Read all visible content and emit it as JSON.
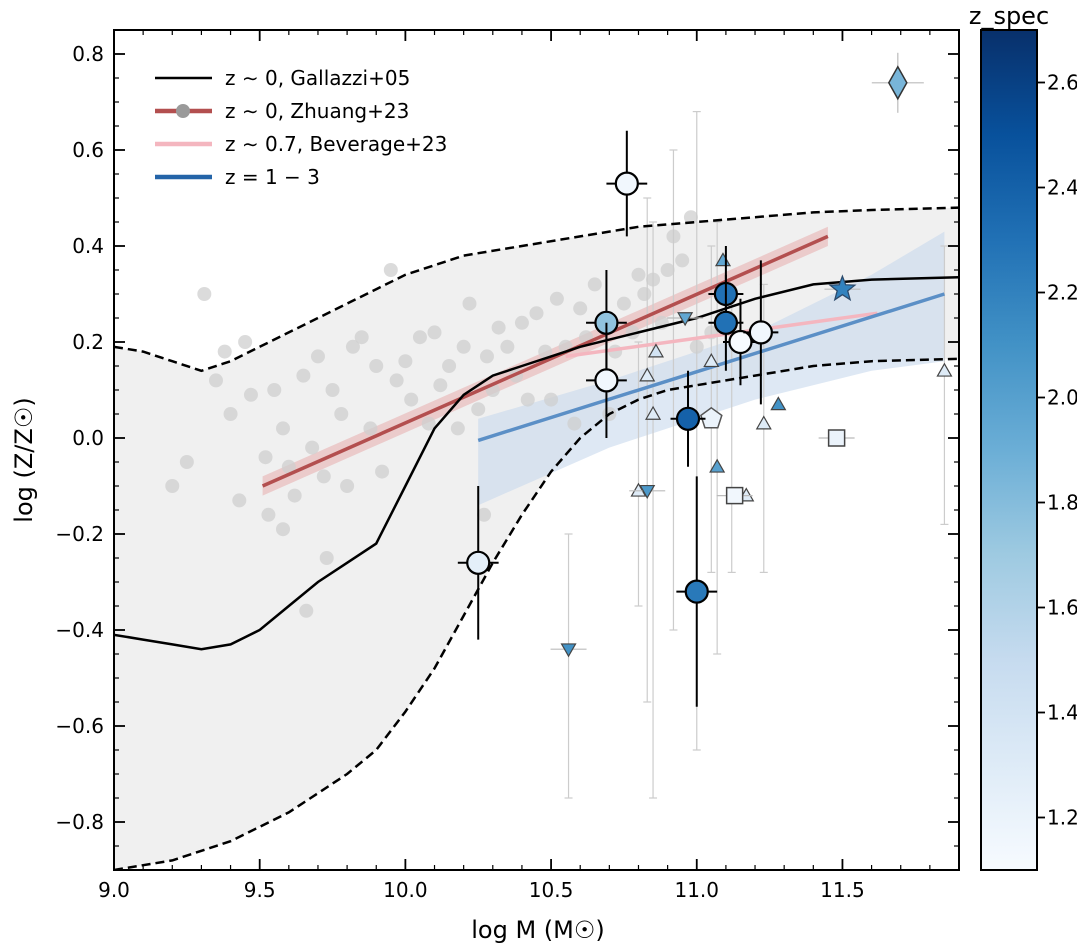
{
  "chart_data": {
    "type": "scatter",
    "xlabel": "log M (M☉)",
    "ylabel": "log (Z/Z☉)",
    "xlim": [
      9.0,
      11.9
    ],
    "ylim": [
      -0.9,
      0.85
    ],
    "xticks": [
      "9.0",
      "9.5",
      "10.0",
      "10.5",
      "11.0",
      "11.5"
    ],
    "yticks": [
      "0.8",
      "0.6",
      "0.4",
      "0.2",
      "0.0",
      "−0.2",
      "−0.4",
      "−0.6",
      "−0.8"
    ],
    "xtick_values": [
      9.0,
      9.5,
      10.0,
      10.5,
      11.0,
      11.5
    ],
    "ytick_values": [
      0.8,
      0.6,
      0.4,
      0.2,
      0.0,
      -0.2,
      -0.4,
      -0.6,
      -0.8
    ],
    "colorbar": {
      "label": "z_spec",
      "range": [
        1.1,
        2.7
      ],
      "ticks": [
        "2.6",
        "2.4",
        "2.2",
        "2.0",
        "1.8",
        "1.6",
        "1.4",
        "1.2"
      ],
      "tick_values": [
        2.6,
        2.4,
        2.2,
        2.0,
        1.8,
        1.6,
        1.4,
        1.2
      ],
      "colormap": [
        "#f7fbff",
        "#deebf7",
        "#c6dbef",
        "#9ecae1",
        "#6baed6",
        "#4292c6",
        "#2171b5",
        "#08519c",
        "#08306b"
      ]
    },
    "legend": {
      "placement": "top-left",
      "entries": [
        {
          "name": "z ∼ 0, Gallazzi+05",
          "color": "#000000"
        },
        {
          "name": "z ∼ 0, Zhuang+23",
          "color": "#b34f4f"
        },
        {
          "name": "z ∼ 0.7, Beverage+23",
          "color": "#f4b6bf"
        },
        {
          "name": "z = 1 − 3",
          "color": "#2464a8"
        }
      ]
    },
    "gallazzi": {
      "median": [
        [
          9.0,
          -0.41
        ],
        [
          9.1,
          -0.42
        ],
        [
          9.2,
          -0.43
        ],
        [
          9.3,
          -0.44
        ],
        [
          9.4,
          -0.43
        ],
        [
          9.5,
          -0.4
        ],
        [
          9.6,
          -0.35
        ],
        [
          9.7,
          -0.3
        ],
        [
          9.8,
          -0.26
        ],
        [
          9.9,
          -0.22
        ],
        [
          10.0,
          -0.1
        ],
        [
          10.1,
          0.02
        ],
        [
          10.2,
          0.09
        ],
        [
          10.3,
          0.13
        ],
        [
          10.4,
          0.15
        ],
        [
          10.5,
          0.17
        ],
        [
          10.6,
          0.19
        ],
        [
          10.8,
          0.22
        ],
        [
          11.0,
          0.25
        ],
        [
          11.2,
          0.29
        ],
        [
          11.4,
          0.32
        ],
        [
          11.6,
          0.33
        ],
        [
          11.9,
          0.335
        ]
      ],
      "upper": [
        [
          9.0,
          0.19
        ],
        [
          9.1,
          0.18
        ],
        [
          9.2,
          0.16
        ],
        [
          9.3,
          0.14
        ],
        [
          9.4,
          0.16
        ],
        [
          9.5,
          0.19
        ],
        [
          9.6,
          0.22
        ],
        [
          9.7,
          0.25
        ],
        [
          9.8,
          0.28
        ],
        [
          9.9,
          0.31
        ],
        [
          10.0,
          0.34
        ],
        [
          10.2,
          0.38
        ],
        [
          10.4,
          0.4
        ],
        [
          10.6,
          0.42
        ],
        [
          10.8,
          0.44
        ],
        [
          11.0,
          0.45
        ],
        [
          11.2,
          0.46
        ],
        [
          11.4,
          0.47
        ],
        [
          11.6,
          0.475
        ],
        [
          11.9,
          0.48
        ]
      ],
      "lower": [
        [
          9.0,
          -0.9
        ],
        [
          9.1,
          -0.89
        ],
        [
          9.2,
          -0.88
        ],
        [
          9.3,
          -0.86
        ],
        [
          9.4,
          -0.84
        ],
        [
          9.5,
          -0.81
        ],
        [
          9.6,
          -0.78
        ],
        [
          9.7,
          -0.74
        ],
        [
          9.8,
          -0.7
        ],
        [
          9.9,
          -0.65
        ],
        [
          10.0,
          -0.57
        ],
        [
          10.1,
          -0.48
        ],
        [
          10.2,
          -0.37
        ],
        [
          10.3,
          -0.26
        ],
        [
          10.4,
          -0.16
        ],
        [
          10.5,
          -0.07
        ],
        [
          10.6,
          0.0
        ],
        [
          10.7,
          0.05
        ],
        [
          10.8,
          0.08
        ],
        [
          10.9,
          0.1
        ],
        [
          11.0,
          0.11
        ],
        [
          11.2,
          0.13
        ],
        [
          11.4,
          0.15
        ],
        [
          11.6,
          0.16
        ],
        [
          11.9,
          0.165
        ]
      ]
    },
    "zhuang": {
      "line": [
        [
          9.51,
          -0.1
        ],
        [
          11.45,
          0.42
        ]
      ],
      "band": [
        [
          9.51,
          -0.08
        ],
        [
          11.45,
          0.44
        ],
        [
          11.45,
          0.4
        ],
        [
          9.51,
          -0.12
        ]
      ],
      "points": [
        [
          9.31,
          0.3
        ],
        [
          9.35,
          0.12
        ],
        [
          9.38,
          0.18
        ],
        [
          9.4,
          0.05
        ],
        [
          9.45,
          0.2
        ],
        [
          9.47,
          0.09
        ],
        [
          9.52,
          -0.04
        ],
        [
          9.55,
          0.1
        ],
        [
          9.58,
          0.02
        ],
        [
          9.6,
          -0.06
        ],
        [
          9.62,
          -0.12
        ],
        [
          9.65,
          0.13
        ],
        [
          9.68,
          -0.02
        ],
        [
          9.7,
          0.17
        ],
        [
          9.72,
          -0.08
        ],
        [
          9.75,
          0.1
        ],
        [
          9.78,
          0.05
        ],
        [
          9.8,
          -0.1
        ],
        [
          9.82,
          0.19
        ],
        [
          9.85,
          0.21
        ],
        [
          9.88,
          0.02
        ],
        [
          9.9,
          0.15
        ],
        [
          9.92,
          -0.07
        ],
        [
          9.95,
          0.35
        ],
        [
          9.97,
          0.12
        ],
        [
          10.0,
          0.16
        ],
        [
          10.02,
          0.08
        ],
        [
          10.05,
          0.21
        ],
        [
          10.08,
          0.03
        ],
        [
          10.1,
          0.22
        ],
        [
          10.12,
          0.11
        ],
        [
          10.15,
          0.15
        ],
        [
          10.18,
          0.02
        ],
        [
          10.2,
          0.19
        ],
        [
          10.22,
          0.28
        ],
        [
          10.25,
          0.06
        ],
        [
          10.28,
          0.17
        ],
        [
          10.3,
          0.1
        ],
        [
          10.32,
          0.23
        ],
        [
          10.35,
          0.19
        ],
        [
          10.38,
          0.13
        ],
        [
          10.4,
          0.24
        ],
        [
          10.42,
          0.08
        ],
        [
          10.45,
          0.26
        ],
        [
          10.48,
          0.18
        ],
        [
          10.5,
          0.08
        ],
        [
          10.52,
          0.29
        ],
        [
          10.55,
          0.19
        ],
        [
          10.58,
          0.03
        ],
        [
          10.6,
          0.27
        ],
        [
          10.62,
          0.21
        ],
        [
          10.65,
          0.32
        ],
        [
          10.68,
          0.25
        ],
        [
          10.7,
          0.05
        ],
        [
          10.72,
          0.18
        ],
        [
          10.75,
          0.28
        ],
        [
          10.78,
          0.22
        ],
        [
          10.8,
          0.34
        ],
        [
          10.82,
          0.3
        ],
        [
          10.85,
          0.33
        ],
        [
          10.88,
          0.24
        ],
        [
          10.9,
          0.35
        ],
        [
          10.92,
          0.42
        ],
        [
          10.95,
          0.37
        ],
        [
          10.98,
          0.46
        ],
        [
          11.0,
          0.19
        ],
        [
          11.05,
          0.22
        ],
        [
          9.2,
          -0.1
        ],
        [
          9.25,
          -0.05
        ],
        [
          9.53,
          -0.16
        ],
        [
          9.58,
          -0.19
        ],
        [
          9.66,
          -0.36
        ],
        [
          9.73,
          -0.25
        ],
        [
          9.43,
          -0.13
        ],
        [
          10.27,
          -0.16
        ]
      ]
    },
    "beverage": {
      "line": [
        [
          10.55,
          0.17
        ],
        [
          11.62,
          0.26
        ]
      ],
      "band": [
        [
          10.55,
          0.19
        ],
        [
          11.62,
          0.27
        ],
        [
          11.62,
          0.25
        ],
        [
          10.55,
          0.15
        ]
      ]
    },
    "highz": {
      "line": [
        [
          10.25,
          -0.005
        ],
        [
          11.85,
          0.3
        ]
      ],
      "band": [
        [
          10.25,
          0.04
        ],
        [
          10.7,
          0.12
        ],
        [
          11.2,
          0.22
        ],
        [
          11.6,
          0.34
        ],
        [
          11.85,
          0.43
        ],
        [
          11.85,
          0.16
        ],
        [
          11.6,
          0.14
        ],
        [
          11.2,
          0.08
        ],
        [
          10.7,
          -0.02
        ],
        [
          10.25,
          -0.14
        ]
      ]
    },
    "circles": [
      {
        "x": 10.76,
        "y": 0.53,
        "z": 1.15,
        "xerr": 0.07,
        "yerr": 0.11
      },
      {
        "x": 10.69,
        "y": 0.24,
        "z": 1.75,
        "xerr": 0.07,
        "yerr": 0.11
      },
      {
        "x": 10.69,
        "y": 0.12,
        "z": 1.15,
        "xerr": 0.07,
        "yerr": 0.12
      },
      {
        "x": 10.25,
        "y": -0.26,
        "z": 1.25,
        "xerr": 0.07,
        "yerr": 0.16
      },
      {
        "x": 11.1,
        "y": 0.3,
        "z": 2.3,
        "xerr": 0.06,
        "yerr": 0.1
      },
      {
        "x": 11.1,
        "y": 0.24,
        "z": 2.3,
        "xerr": 0.06,
        "yerr": 0.1
      },
      {
        "x": 11.15,
        "y": 0.2,
        "z": 1.1,
        "xerr": 0.06,
        "yerr": 0.09
      },
      {
        "x": 11.22,
        "y": 0.22,
        "z": 1.15,
        "xerr": 0.06,
        "yerr": 0.15
      },
      {
        "x": 10.97,
        "y": 0.04,
        "z": 2.4,
        "xerr": 0.06,
        "yerr": 0.1
      },
      {
        "x": 11.0,
        "y": -0.32,
        "z": 2.25,
        "xerr": 0.07,
        "yerr": 0.24
      }
    ],
    "triangles_up": [
      {
        "x": 11.09,
        "y": 0.37,
        "z": 1.95
      },
      {
        "x": 10.86,
        "y": 0.18,
        "z": 1.4
      },
      {
        "x": 11.05,
        "y": 0.16,
        "z": 1.3
      },
      {
        "x": 10.83,
        "y": 0.13,
        "z": 1.3
      },
      {
        "x": 10.85,
        "y": 0.05,
        "z": 1.3
      },
      {
        "x": 11.28,
        "y": 0.07,
        "z": 2.1
      },
      {
        "x": 11.23,
        "y": 0.03,
        "z": 1.3
      },
      {
        "x": 11.07,
        "y": -0.06,
        "z": 2.0
      },
      {
        "x": 10.8,
        "y": -0.11,
        "z": 1.3
      },
      {
        "x": 11.17,
        "y": -0.12,
        "z": 1.3
      },
      {
        "x": 11.85,
        "y": 0.14,
        "z": 1.3
      }
    ],
    "triangles_down": [
      {
        "x": 10.96,
        "y": 0.25,
        "z": 1.95
      },
      {
        "x": 10.83,
        "y": -0.11,
        "z": 2.05
      },
      {
        "x": 10.56,
        "y": -0.44,
        "z": 2.1
      }
    ],
    "squares": [
      {
        "x": 11.13,
        "y": -0.12,
        "z": 1.15
      },
      {
        "x": 11.48,
        "y": 0.0,
        "z": 1.2
      }
    ],
    "pentagon": {
      "x": 11.05,
      "y": 0.04,
      "z": 1.2
    },
    "star": {
      "x": 11.5,
      "y": 0.31,
      "z": 2.2
    },
    "diamond": {
      "x": 11.69,
      "y": 0.74,
      "z": 1.85
    },
    "faint_errorbars": [
      {
        "x": 10.83,
        "y": 0.13,
        "lo": -0.55,
        "hi": 0.5
      },
      {
        "x": 10.85,
        "y": 0.05,
        "lo": -0.75,
        "hi": 0.45
      },
      {
        "x": 10.92,
        "y": 0.18,
        "lo": -0.4,
        "hi": 0.6
      },
      {
        "x": 11.0,
        "y": 0.1,
        "lo": -0.65,
        "hi": 0.68
      },
      {
        "x": 11.05,
        "y": 0.16,
        "lo": -0.28,
        "hi": 0.4
      },
      {
        "x": 11.07,
        "y": -0.06,
        "lo": -0.45,
        "hi": 0.45
      },
      {
        "x": 11.12,
        "y": 0.1,
        "lo": -0.28,
        "hi": 0.3
      },
      {
        "x": 11.23,
        "y": 0.03,
        "lo": -0.28,
        "hi": 0.32
      },
      {
        "x": 10.8,
        "y": -0.11,
        "lo": -0.35,
        "hi": 0.2
      },
      {
        "x": 11.85,
        "y": 0.14,
        "lo": -0.18,
        "hi": 0.4
      },
      {
        "x": 10.56,
        "y": -0.44,
        "lo": -0.75,
        "hi": -0.2
      }
    ]
  }
}
